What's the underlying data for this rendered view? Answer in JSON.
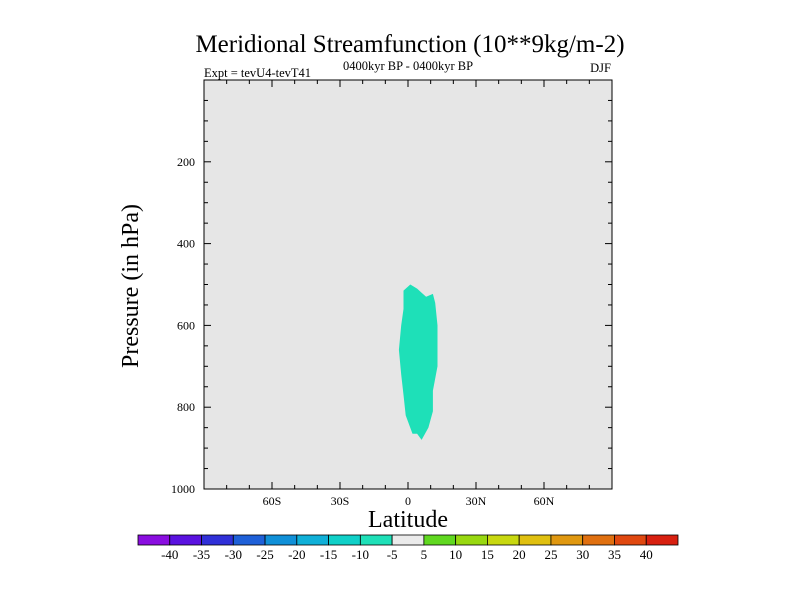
{
  "chart_data": {
    "type": "contour",
    "title": "Meridional Streamfunction (10**9kg/m-2)",
    "left_label": "Expt = tevU4-tevT41",
    "center_label": "0400kyr BP - 0400kyr BP",
    "right_label": "DJF",
    "xlabel": "Latitude",
    "ylabel": "Pressure (in hPa)",
    "xlim": [
      -90,
      90
    ],
    "ylim": [
      0,
      1000
    ],
    "y_inverted": true,
    "x_ticks": [
      {
        "value": -60,
        "label": "60S"
      },
      {
        "value": -30,
        "label": "30S"
      },
      {
        "value": 0,
        "label": "0"
      },
      {
        "value": 30,
        "label": "30N"
      },
      {
        "value": 60,
        "label": "60N"
      }
    ],
    "y_ticks": [
      {
        "value": 200,
        "label": "200"
      },
      {
        "value": 400,
        "label": "400"
      },
      {
        "value": 600,
        "label": "600"
      },
      {
        "value": 800,
        "label": "800"
      },
      {
        "value": 1000,
        "label": "1000"
      }
    ],
    "background_fill": "#e6e6e6",
    "regions": [
      {
        "level_range": [
          -10,
          -5
        ],
        "color": "#1ee0b8",
        "polygon": [
          [
            -2,
            515
          ],
          [
            1,
            500
          ],
          [
            4,
            510
          ],
          [
            6,
            520
          ],
          [
            8,
            530
          ],
          [
            11,
            523
          ],
          [
            12,
            545
          ],
          [
            13,
            600
          ],
          [
            13,
            650
          ],
          [
            13,
            700
          ],
          [
            11,
            760
          ],
          [
            11,
            810
          ],
          [
            9,
            850
          ],
          [
            7,
            870
          ],
          [
            6,
            880
          ],
          [
            4,
            865
          ],
          [
            2,
            865
          ],
          [
            -1,
            820
          ],
          [
            -2,
            770
          ],
          [
            -3,
            720
          ],
          [
            -4,
            660
          ],
          [
            -3,
            600
          ],
          [
            -2,
            560
          ]
        ]
      }
    ],
    "colorbar": {
      "labels": [
        "-40",
        "-35",
        "-30",
        "-25",
        "-20",
        "-15",
        "-10",
        "-5",
        "5",
        "10",
        "15",
        "20",
        "25",
        "30",
        "35",
        "40"
      ],
      "colors": [
        "#8a0ee0",
        "#5a12e0",
        "#3030d8",
        "#1e60d8",
        "#1090d8",
        "#10b0d8",
        "#10d0c8",
        "#1ee0b8",
        "#ebebeb",
        "#60d820",
        "#98d810",
        "#c8d810",
        "#e0c010",
        "#e09810",
        "#e07010",
        "#e04810",
        "#d82010"
      ]
    }
  }
}
